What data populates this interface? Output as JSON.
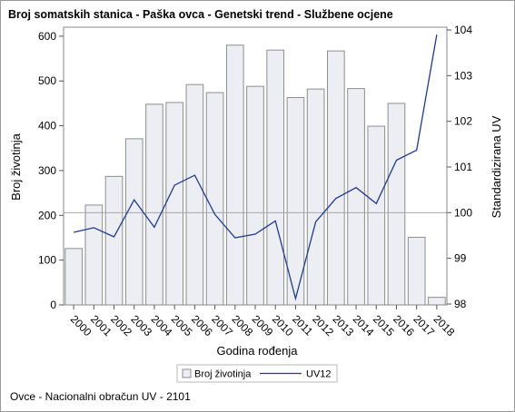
{
  "title": "Broj somatskih stanica - Paška ovca - Genetski trend - Službene ocjene",
  "footnote": "Ovce - Nacionalni obračun UV - 2101",
  "chart_data": {
    "type": "bar",
    "title": "Broj somatskih stanica - Paška ovca - Genetski trend - Službene ocjene",
    "xlabel": "Godina rođenja",
    "ylabel": "Broj životinja",
    "y2label": "Standardizirana UV",
    "categories": [
      "2000",
      "2001",
      "2002",
      "2003",
      "2004",
      "2005",
      "2006",
      "2007",
      "2008",
      "2009",
      "2010",
      "2011",
      "2012",
      "2013",
      "2014",
      "2015",
      "2016",
      "2017",
      "2018"
    ],
    "ylim": [
      0,
      620
    ],
    "yticks": [
      0,
      100,
      200,
      300,
      400,
      500,
      600
    ],
    "y2lim": [
      97.98,
      104.06
    ],
    "y2ticks": [
      98,
      99,
      100,
      101,
      102,
      103,
      104
    ],
    "reference_line_y2": 100,
    "grid": false,
    "legend_position": "bottom",
    "colors": {
      "bar_fill": "#eceef4",
      "bar_stroke": "#8e8e8e",
      "line": "#1f3c8c",
      "ref": "#a8a8a8"
    },
    "series": [
      {
        "name": "Broj životinja",
        "type": "bar",
        "axis": "left",
        "values": [
          126,
          223,
          287,
          371,
          448,
          452,
          492,
          474,
          580,
          488,
          569,
          463,
          482,
          567,
          483,
          399,
          450,
          151,
          17
        ]
      },
      {
        "name": "UV12",
        "type": "line",
        "axis": "right",
        "values": [
          99.57,
          99.67,
          99.47,
          100.28,
          99.68,
          100.6,
          100.82,
          99.96,
          99.45,
          99.53,
          99.82,
          98.12,
          99.8,
          100.31,
          100.55,
          100.2,
          101.15,
          101.37,
          103.9
        ]
      }
    ]
  }
}
